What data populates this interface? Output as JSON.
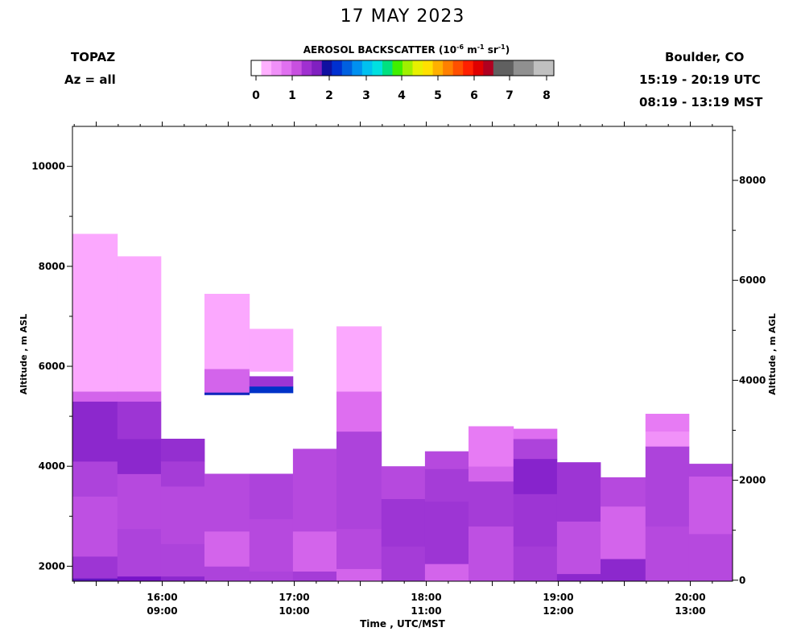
{
  "header": {
    "title": "17 MAY 2023",
    "instrument": "TOPAZ",
    "azimuth": "Az = all",
    "location": "Boulder, CO",
    "utc_range": "15:19 - 20:19 UTC",
    "mst_range": "08:19 - 13:19 MST"
  },
  "colorbar": {
    "label_prefix": "AEROSOL BACKSCATTER (10",
    "exp1": "-6",
    "label_mid": " m",
    "exp2": "-1",
    "label_mid2": " sr",
    "exp3": "-1",
    "label_suffix": ")",
    "ticks": [
      "0",
      "1",
      "2",
      "3",
      "4",
      "5",
      "6",
      "7",
      "8"
    ],
    "colors": [
      "#ffffff",
      "#ffb0ff",
      "#f090f8",
      "#e070f0",
      "#c850e0",
      "#a030d0",
      "#8020c0",
      "#1010a0",
      "#0030d0",
      "#0060e0",
      "#0090f0",
      "#00c0f0",
      "#00e0e0",
      "#00e080",
      "#40f000",
      "#a0f000",
      "#e8f000",
      "#ffe000",
      "#ffb000",
      "#ff8000",
      "#ff5000",
      "#ff2000",
      "#e00000",
      "#b00020",
      "#606060",
      "#606060",
      "#909090",
      "#909090",
      "#c0c0c0",
      "#c0c0c0"
    ]
  },
  "axes": {
    "x_title": "Time , UTC/MST",
    "y_left_title": "Altitude , m ASL",
    "y_right_title": "Altitude , m AGL"
  },
  "chart_data": {
    "type": "heatmap",
    "title": "17 MAY 2023",
    "xlabel": "Time , UTC/MST",
    "ylabel": "Altitude , m ASL",
    "ylabel_right": "Altitude , m AGL",
    "xlim_utc_hours": [
      15.32,
      20.32
    ],
    "ylim": [
      1700,
      10800
    ],
    "y_right_lim": [
      -20,
      9080
    ],
    "x_ticks": [
      {
        "t": 16,
        "utc": "16:00",
        "mst": "09:00"
      },
      {
        "t": 17,
        "utc": "17:00",
        "mst": "10:00"
      },
      {
        "t": 18,
        "utc": "18:00",
        "mst": "11:00"
      },
      {
        "t": 19,
        "utc": "19:00",
        "mst": "12:00"
      },
      {
        "t": 20,
        "utc": "20:00",
        "mst": "13:00"
      }
    ],
    "y_ticks_left": [
      2000,
      4000,
      6000,
      8000,
      10000
    ],
    "y_ticks_right": [
      0,
      2000,
      4000,
      6000,
      8000
    ],
    "colorbar_range": [
      0,
      8
    ],
    "profiles": [
      {
        "t0": 15.32,
        "t1": 15.66,
        "layers": [
          [
            1700,
            1760,
            1.3
          ],
          [
            1760,
            2200,
            0.9
          ],
          [
            2200,
            2800,
            0.7
          ],
          [
            2800,
            3400,
            0.7
          ],
          [
            3400,
            4100,
            0.8
          ],
          [
            4100,
            5300,
            1.0
          ],
          [
            5300,
            5500,
            0.6
          ],
          [
            5500,
            8650,
            0.1
          ]
        ]
      },
      {
        "t0": 15.66,
        "t1": 15.99,
        "layers": [
          [
            1700,
            1800,
            1.2
          ],
          [
            1800,
            2750,
            0.8
          ],
          [
            2750,
            3850,
            0.75
          ],
          [
            3850,
            4550,
            1.0
          ],
          [
            4550,
            5300,
            0.9
          ],
          [
            5300,
            5500,
            0.6
          ],
          [
            5500,
            8200,
            0.1
          ]
        ]
      },
      {
        "t0": 15.99,
        "t1": 16.32,
        "layers": [
          [
            1700,
            1800,
            1.0
          ],
          [
            1800,
            2450,
            0.8
          ],
          [
            2450,
            3600,
            0.75
          ],
          [
            3600,
            4100,
            0.85
          ],
          [
            4100,
            4550,
            0.95
          ]
        ]
      },
      {
        "t0": 16.32,
        "t1": 16.66,
        "layers": [
          [
            1700,
            2000,
            0.8
          ],
          [
            2000,
            2700,
            0.6
          ],
          [
            2700,
            3850,
            0.75
          ],
          [
            5430,
            5480,
            1.8
          ],
          [
            5480,
            5950,
            0.6
          ],
          [
            5950,
            7450,
            0.1
          ]
        ]
      },
      {
        "t0": 16.66,
        "t1": 16.99,
        "layers": [
          [
            1700,
            1900,
            0.8
          ],
          [
            1900,
            2950,
            0.75
          ],
          [
            2950,
            3850,
            0.8
          ],
          [
            5470,
            5600,
            2.0
          ],
          [
            5600,
            5800,
            0.9
          ],
          [
            5900,
            6750,
            0.1
          ]
        ]
      },
      {
        "t0": 16.99,
        "t1": 17.32,
        "layers": [
          [
            1700,
            1900,
            0.85
          ],
          [
            1900,
            2700,
            0.6
          ],
          [
            2700,
            4350,
            0.75
          ]
        ]
      },
      {
        "t0": 17.32,
        "t1": 17.66,
        "layers": [
          [
            1700,
            1950,
            0.6
          ],
          [
            1950,
            2750,
            0.75
          ],
          [
            2750,
            4700,
            0.8
          ],
          [
            4700,
            5500,
            0.55
          ],
          [
            5500,
            6800,
            0.1
          ]
        ]
      },
      {
        "t0": 17.66,
        "t1": 17.99,
        "layers": [
          [
            1700,
            2400,
            0.85
          ],
          [
            2400,
            3350,
            0.9
          ],
          [
            3350,
            4000,
            0.75
          ]
        ]
      },
      {
        "t0": 17.99,
        "t1": 18.32,
        "layers": [
          [
            1700,
            2050,
            0.6
          ],
          [
            2050,
            3300,
            0.9
          ],
          [
            3300,
            3950,
            0.85
          ],
          [
            3950,
            4300,
            0.75
          ]
        ]
      },
      {
        "t0": 18.32,
        "t1": 18.66,
        "layers": [
          [
            1700,
            2800,
            0.7
          ],
          [
            2800,
            3700,
            0.85
          ],
          [
            3700,
            4000,
            0.6
          ],
          [
            4000,
            4800,
            0.45
          ]
        ]
      },
      {
        "t0": 18.66,
        "t1": 18.99,
        "layers": [
          [
            1700,
            2400,
            0.85
          ],
          [
            2400,
            3450,
            0.9
          ],
          [
            3450,
            4150,
            1.05
          ],
          [
            4150,
            4550,
            0.8
          ],
          [
            4550,
            4750,
            0.55
          ]
        ]
      },
      {
        "t0": 18.99,
        "t1": 19.32,
        "layers": [
          [
            1700,
            1850,
            1.0
          ],
          [
            1850,
            2900,
            0.7
          ],
          [
            2900,
            4080,
            0.9
          ]
        ]
      },
      {
        "t0": 19.32,
        "t1": 19.66,
        "layers": [
          [
            1700,
            2150,
            1.0
          ],
          [
            2150,
            3200,
            0.6
          ],
          [
            3200,
            3780,
            0.75
          ]
        ]
      },
      {
        "t0": 19.66,
        "t1": 19.99,
        "layers": [
          [
            1700,
            2800,
            0.75
          ],
          [
            2800,
            4400,
            0.8
          ],
          [
            4400,
            4700,
            0.3
          ],
          [
            4700,
            5050,
            0.45
          ]
        ]
      },
      {
        "t0": 19.99,
        "t1": 20.32,
        "layers": [
          [
            1700,
            2650,
            0.75
          ],
          [
            2650,
            3800,
            0.65
          ],
          [
            3800,
            4050,
            0.8
          ]
        ]
      }
    ]
  }
}
